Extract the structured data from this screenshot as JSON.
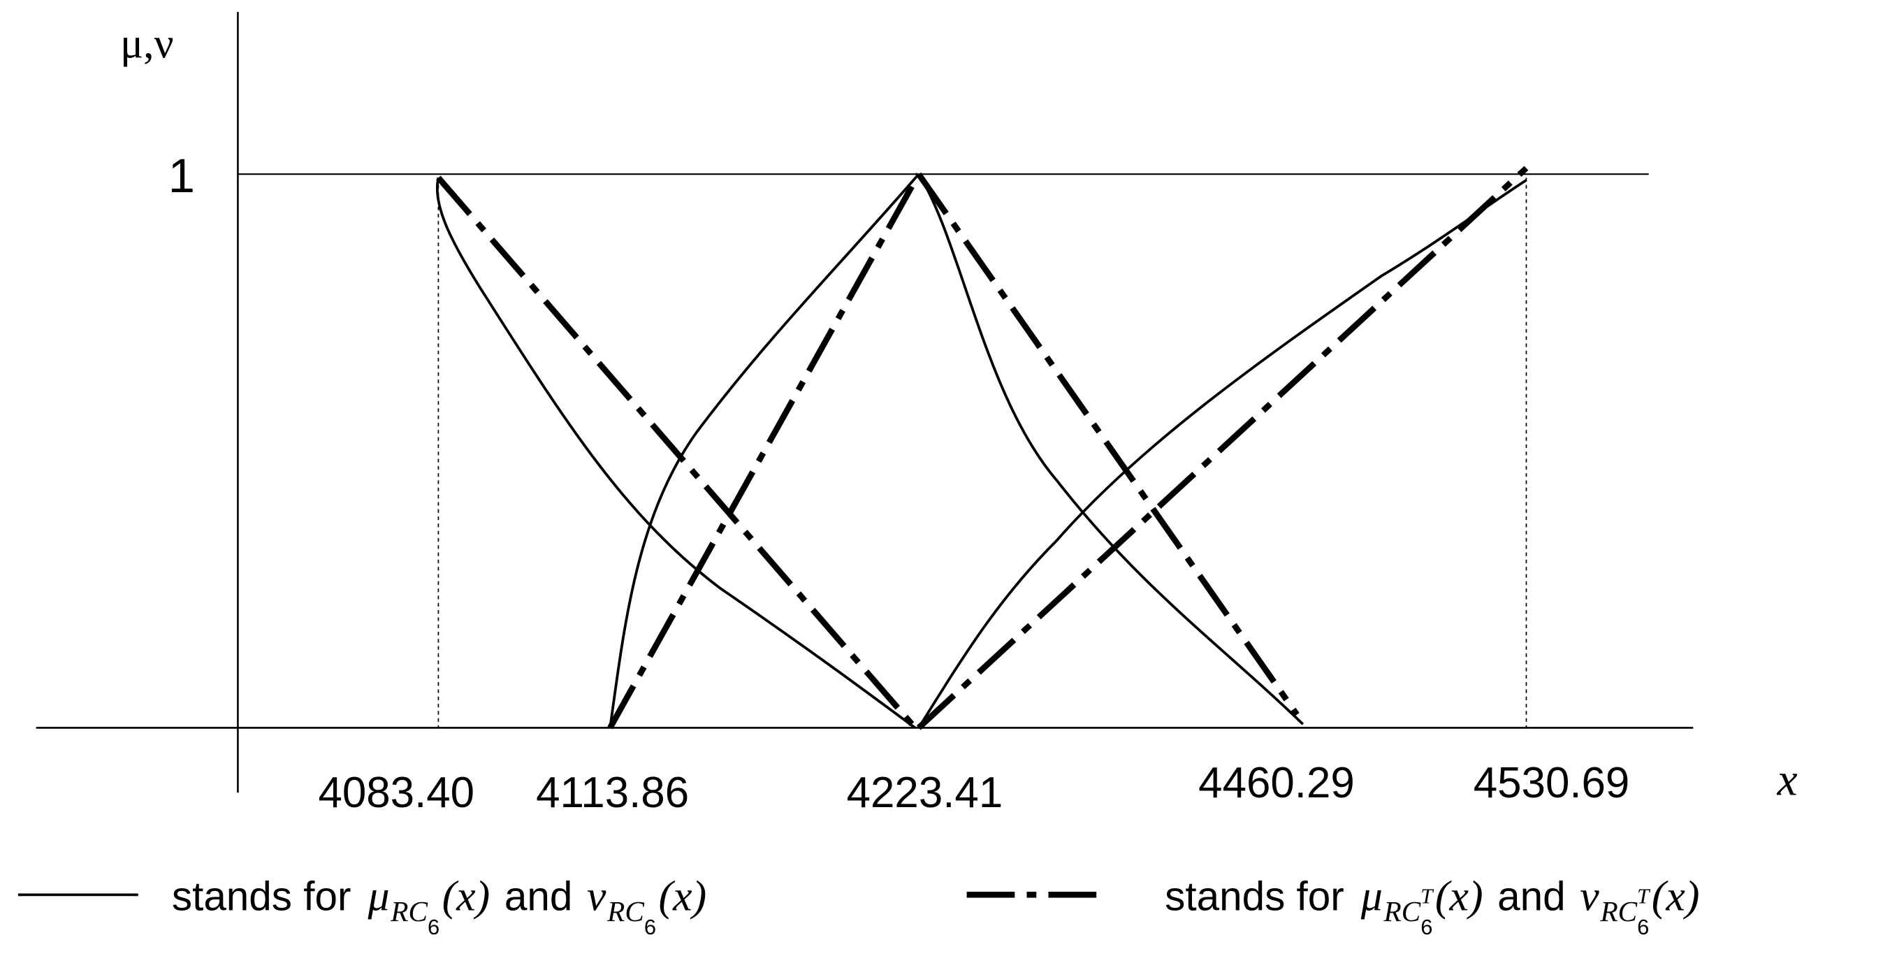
{
  "axes": {
    "y_label": "μ,ν",
    "y_tick": "1",
    "x_label": "x",
    "x_ticks": [
      "4083.40",
      "4113.86",
      "4223.41",
      "4460.29",
      "4530.69"
    ]
  },
  "legend": [
    {
      "prefix": "stands for",
      "joiner": "and",
      "terms": [
        {
          "symbol": "μ",
          "sub": "RC",
          "sub_index": "6",
          "arg": "(x)"
        },
        {
          "symbol": "ν",
          "sub": "RC",
          "sub_index": "6",
          "arg": "(x)"
        }
      ]
    },
    {
      "prefix": "stands for",
      "joiner": "and",
      "terms": [
        {
          "symbol": "μ",
          "sub": "RC",
          "sub_index": "6",
          "sup": "T",
          "arg": "(x)"
        },
        {
          "symbol": "ν",
          "sub": "RC",
          "sub_index": "6",
          "sup": "T",
          "arg": "(x)"
        }
      ]
    }
  ]
}
